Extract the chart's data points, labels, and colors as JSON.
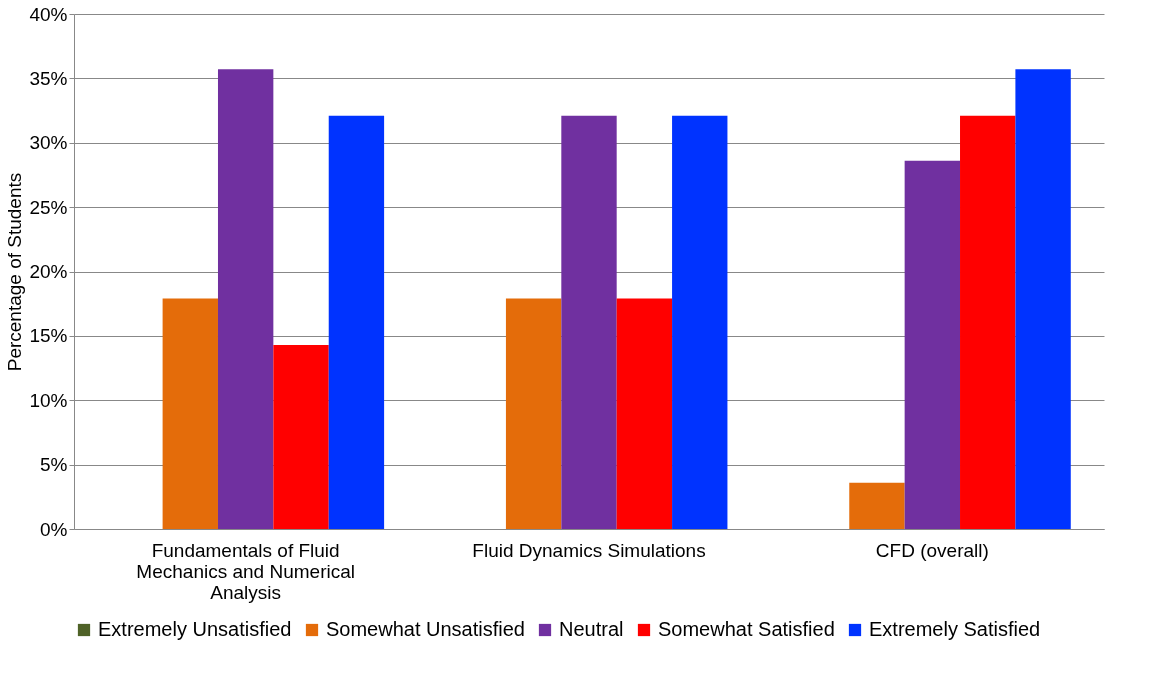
{
  "chart_data": {
    "type": "bar",
    "ylabel": "Percentage of Students",
    "categories": [
      "Fundamentals of Fluid Mechanics and Numerical Analysis",
      "Fluid Dynamics Simulations",
      "CFD (overall)"
    ],
    "series": [
      {
        "name": "Extremely Unsatisfied",
        "color": "#4f6228",
        "values": [
          0,
          0,
          0
        ]
      },
      {
        "name": "Somewhat Unsatisfied",
        "color": "#e46c0a",
        "values": [
          17.9,
          17.9,
          3.6
        ]
      },
      {
        "name": "Neutral",
        "color": "#7030a0",
        "values": [
          35.7,
          32.1,
          28.6
        ]
      },
      {
        "name": "Somewhat Satisfied",
        "color": "#ff0000",
        "values": [
          14.3,
          17.9,
          32.1
        ]
      },
      {
        "name": "Extremely Satisfied",
        "color": "#0033ff",
        "values": [
          32.1,
          32.1,
          35.7
        ]
      }
    ],
    "ylim": [
      0,
      40
    ],
    "yticks": [
      {
        "value": 0,
        "label": "0%"
      },
      {
        "value": 5,
        "label": "5%"
      },
      {
        "value": 10,
        "label": "10%"
      },
      {
        "value": 15,
        "label": "15%"
      },
      {
        "value": 20,
        "label": "20%"
      },
      {
        "value": 25,
        "label": "25%"
      },
      {
        "value": 30,
        "label": "30%"
      },
      {
        "value": 35,
        "label": "35%"
      },
      {
        "value": 40,
        "label": "40%"
      }
    ],
    "grid": "y",
    "legend": "bottom"
  }
}
